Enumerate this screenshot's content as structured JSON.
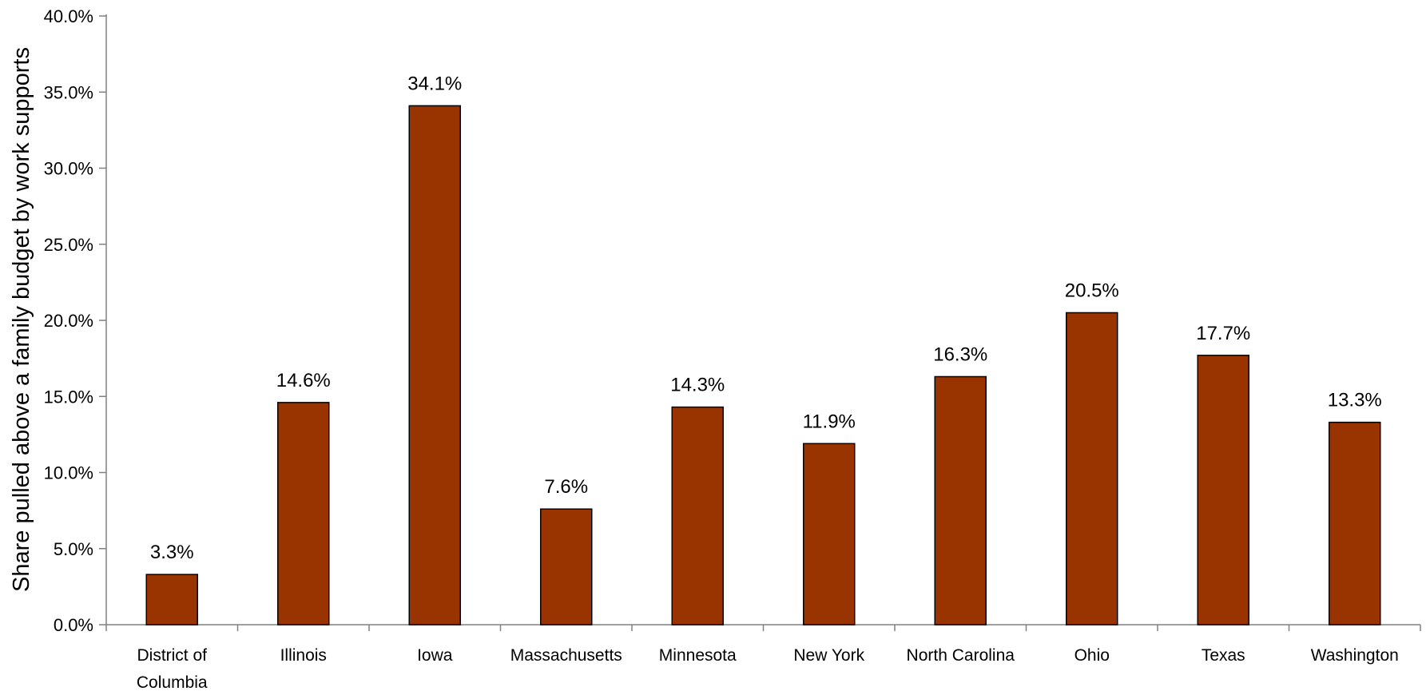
{
  "chart_data": {
    "type": "bar",
    "title": "",
    "xlabel": "",
    "ylabel": "Share pulled above a family budget by work supports",
    "categories": [
      [
        "District of",
        "Columbia"
      ],
      [
        "Illinois"
      ],
      [
        "Iowa"
      ],
      [
        "Massachusetts"
      ],
      [
        "Minnesota"
      ],
      [
        "New York"
      ],
      [
        "North Carolina"
      ],
      [
        "Ohio"
      ],
      [
        "Texas"
      ],
      [
        "Washington"
      ]
    ],
    "values": [
      3.3,
      14.6,
      34.1,
      7.6,
      14.3,
      11.9,
      16.3,
      20.5,
      17.7,
      13.3
    ],
    "data_labels": [
      "3.3%",
      "14.6%",
      "34.1%",
      "7.6%",
      "14.3%",
      "11.9%",
      "16.3%",
      "20.5%",
      "17.7%",
      "13.3%"
    ],
    "ylim": [
      0,
      40
    ],
    "yticks": [
      0,
      5,
      10,
      15,
      20,
      25,
      30,
      35,
      40
    ],
    "ytick_labels": [
      "0.0%",
      "5.0%",
      "10.0%",
      "15.0%",
      "20.0%",
      "25.0%",
      "30.0%",
      "35.0%",
      "40.0%"
    ],
    "grid": false,
    "legend": "none",
    "colors": {
      "bar_fill": "#993300",
      "bar_stroke": "#000000",
      "axis": "#808080"
    }
  }
}
